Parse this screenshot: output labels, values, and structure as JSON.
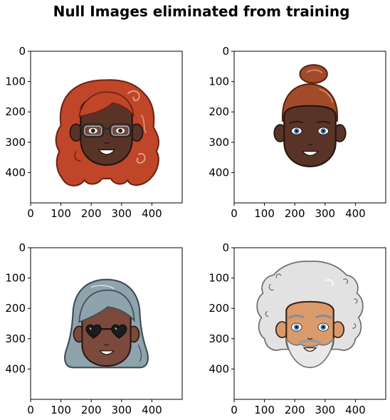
{
  "title": "Null Images eliminated from training",
  "chart_data": [
    {
      "type": "image",
      "subject": "avatar-red-curly-hair-glasses",
      "xlim": [
        0,
        500
      ],
      "ylim": [
        500,
        0
      ],
      "xticks": [
        0,
        100,
        200,
        300,
        400
      ],
      "yticks": [
        0,
        100,
        200,
        300,
        400
      ],
      "xticklabels": [
        "0",
        "100",
        "200",
        "300",
        "400"
      ],
      "yticklabels": [
        "0",
        "100",
        "200",
        "300",
        "400"
      ]
    },
    {
      "type": "image",
      "subject": "avatar-auburn-bun-hair",
      "xlim": [
        0,
        500
      ],
      "ylim": [
        500,
        0
      ],
      "xticks": [
        0,
        100,
        200,
        300,
        400
      ],
      "yticks": [
        0,
        100,
        200,
        300,
        400
      ],
      "xticklabels": [
        "0",
        "100",
        "200",
        "300",
        "400"
      ],
      "yticklabels": [
        "0",
        "100",
        "200",
        "300",
        "400"
      ]
    },
    {
      "type": "image",
      "subject": "avatar-gray-hair-heart-sunglasses",
      "xlim": [
        0,
        500
      ],
      "ylim": [
        500,
        0
      ],
      "xticks": [
        0,
        100,
        200,
        300,
        400
      ],
      "yticks": [
        0,
        100,
        200,
        300,
        400
      ],
      "xticklabels": [
        "0",
        "100",
        "200",
        "300",
        "400"
      ],
      "yticklabels": [
        "0",
        "100",
        "200",
        "300",
        "400"
      ]
    },
    {
      "type": "image",
      "subject": "avatar-white-afro-beard",
      "xlim": [
        0,
        500
      ],
      "ylim": [
        500,
        0
      ],
      "xticks": [
        0,
        100,
        200,
        300,
        400
      ],
      "yticks": [
        0,
        100,
        200,
        300,
        400
      ],
      "xticklabels": [
        "0",
        "100",
        "200",
        "300",
        "400"
      ],
      "yticklabels": [
        "0",
        "100",
        "200",
        "300",
        "400"
      ]
    }
  ]
}
